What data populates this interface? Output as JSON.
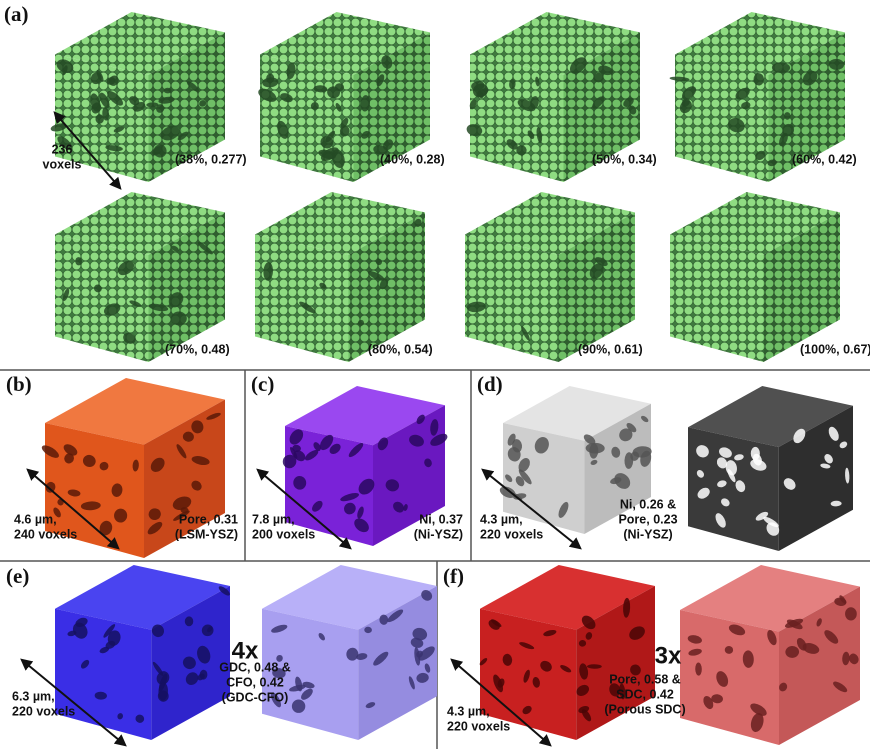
{
  "panel_a": {
    "label": "(a)",
    "scale": [
      "236",
      "voxels"
    ],
    "captions": [
      "(38%, 0.277)",
      "(40%, 0.28)",
      "(50%, 0.34)",
      "(60%, 0.42)",
      "(70%, 0.48)",
      "(80%, 0.54)",
      "(90%, 0.61)",
      "(100%, 0.67)"
    ]
  },
  "panels": [
    {
      "label": "(b)",
      "scale": [
        "4.6 µm,",
        "240 voxels"
      ],
      "caption": [
        "Pore, 0.31",
        "(LSM-YSZ)"
      ]
    },
    {
      "label": "(c)",
      "scale": [
        "7.8 µm,",
        "200 voxels"
      ],
      "caption": [
        "Ni, 0.37",
        "(Ni-YSZ)"
      ]
    },
    {
      "label": "(d)",
      "scale": [
        "4.3 µm,",
        "220 voxels"
      ],
      "caption": [
        "Ni, 0.26 &",
        "Pore, 0.23",
        "(Ni-YSZ)"
      ]
    },
    {
      "label": "(e)",
      "scale": [
        "6.3 µm,",
        "220 voxels"
      ],
      "factor": "4x",
      "caption": [
        "GDC, 0.48 &",
        "CFO, 0.42",
        "(GDC-CFO)"
      ]
    },
    {
      "label": "(f)",
      "scale": [
        "4.3 µm,",
        "220 voxels"
      ],
      "factor": "3x",
      "caption": [
        "Pore, 0.58 &",
        "SDC, 0.42",
        "(Porous SDC)"
      ]
    }
  ]
}
